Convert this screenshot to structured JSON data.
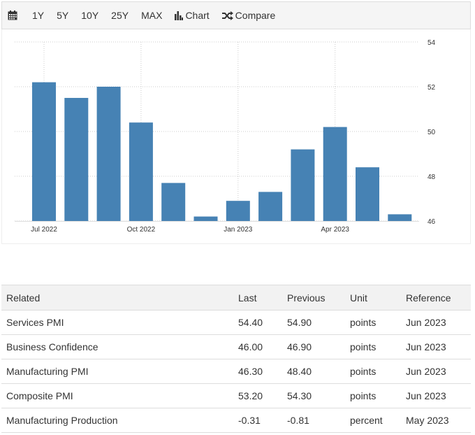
{
  "toolbar": {
    "calendar_icon": "calendar-icon",
    "ranges": [
      "1Y",
      "5Y",
      "10Y",
      "25Y",
      "MAX"
    ],
    "chart_label": "Chart",
    "chart_icon": "bar-chart-icon",
    "compare_label": "Compare",
    "compare_icon": "shuffle-icon"
  },
  "chart_data": {
    "type": "bar",
    "categories": [
      "Jul 2022",
      "Aug 2022",
      "Sep 2022",
      "Oct 2022",
      "Nov 2022",
      "Dec 2022",
      "Jan 2023",
      "Feb 2023",
      "Mar 2023",
      "Apr 2023",
      "May 2023",
      "Jun 2023"
    ],
    "values": [
      52.2,
      51.5,
      52.0,
      50.4,
      47.7,
      46.2,
      46.9,
      47.3,
      49.2,
      50.2,
      48.4,
      46.3
    ],
    "x_tick_labels": [
      "Jul 2022",
      "Oct 2022",
      "Jan 2023",
      "Apr 2023"
    ],
    "y_ticks": [
      46,
      48,
      50,
      52,
      54
    ],
    "ylim": [
      46,
      54
    ],
    "y_axis_side": "right",
    "grid": true,
    "bar_color": "#4682b4",
    "title": "",
    "xlabel": "",
    "ylabel": ""
  },
  "related": {
    "headers": [
      "Related",
      "Last",
      "Previous",
      "Unit",
      "Reference"
    ],
    "rows": [
      [
        "Services PMI",
        "54.40",
        "54.90",
        "points",
        "Jun 2023"
      ],
      [
        "Business Confidence",
        "46.00",
        "46.90",
        "points",
        "Jun 2023"
      ],
      [
        "Manufacturing PMI",
        "46.30",
        "48.40",
        "points",
        "Jun 2023"
      ],
      [
        "Composite PMI",
        "53.20",
        "54.30",
        "points",
        "Jun 2023"
      ],
      [
        "Manufacturing Production",
        "-0.31",
        "-0.81",
        "percent",
        "May 2023"
      ]
    ]
  }
}
